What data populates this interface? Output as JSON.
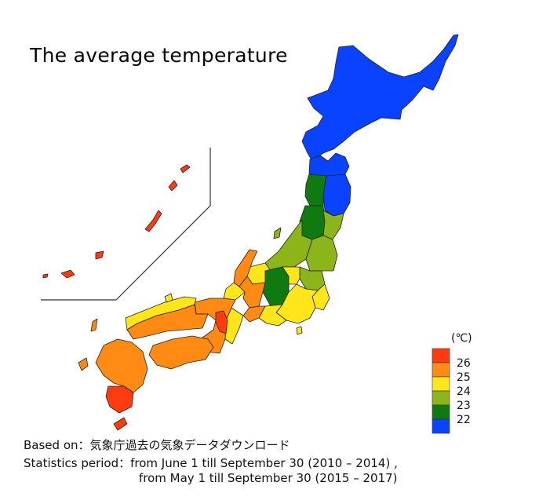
{
  "title": "The average temperature",
  "legend": {
    "unit": "(℃)",
    "items": [
      {
        "label": "26",
        "color": "#ff3b0f"
      },
      {
        "label": "25",
        "color": "#ff8a14"
      },
      {
        "label": "24",
        "color": "#ffe61a"
      },
      {
        "label": "23",
        "color": "#8cb51a"
      },
      {
        "label": "",
        "color": "#0f7a10"
      },
      {
        "label": "22",
        "color": "#0a43ff"
      }
    ],
    "levels": [
      26,
      25,
      24,
      23,
      22.5,
      22
    ]
  },
  "notes": {
    "based_on": "Based on：気象庁過去の気象データダウンロード",
    "period_line1": "Statistics period：from June 1 till September 30 (2010 – 2014) ,",
    "period_line2": "from May 1 till September 30 (2015 – 2017)"
  },
  "regions": [
    {
      "name": "Hokkaido",
      "level": 22
    },
    {
      "name": "Aomori",
      "level": 22
    },
    {
      "name": "Iwate",
      "level": 22
    },
    {
      "name": "Akita",
      "level": 22.5
    },
    {
      "name": "Yamagata",
      "level": 22.5
    },
    {
      "name": "Nagano",
      "level": 22.5
    },
    {
      "name": "Miyagi",
      "level": 23
    },
    {
      "name": "Fukushima",
      "level": 23
    },
    {
      "name": "Niigata",
      "level": 23
    },
    {
      "name": "Tochigi",
      "level": 23
    },
    {
      "name": "Gunma",
      "level": 24
    },
    {
      "name": "Ibaraki",
      "level": 24
    },
    {
      "name": "Kanto",
      "level": 24
    },
    {
      "name": "Shizuoka",
      "level": 24
    },
    {
      "name": "Toyama",
      "level": 24
    },
    {
      "name": "Ishikawa",
      "level": 25
    },
    {
      "name": "Fukui",
      "level": 24
    },
    {
      "name": "Gifu",
      "level": 25
    },
    {
      "name": "Aichi",
      "level": 25
    },
    {
      "name": "Mie",
      "level": 24
    },
    {
      "name": "Kinki",
      "level": 25
    },
    {
      "name": "Osaka",
      "level": 26
    },
    {
      "name": "Chugoku-north",
      "level": 24
    },
    {
      "name": "Chugoku-south",
      "level": 25
    },
    {
      "name": "Shikoku",
      "level": 25
    },
    {
      "name": "Kyushu-north",
      "level": 25
    },
    {
      "name": "Kagoshima",
      "level": 26
    },
    {
      "name": "Okinawa",
      "level": 26
    }
  ]
}
